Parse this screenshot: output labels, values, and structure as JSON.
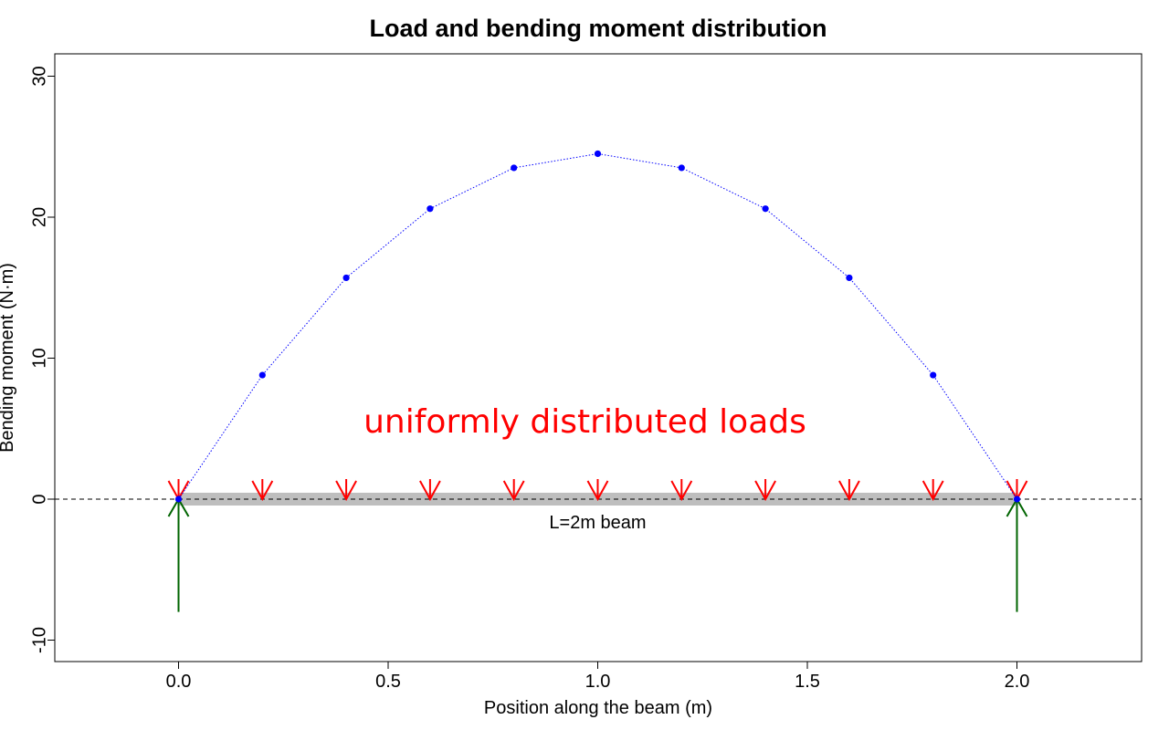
{
  "chart_data": {
    "type": "line",
    "title": "Load and bending moment distribution",
    "xlabel": "Position along the beam (m)",
    "ylabel": "Bending moment (N·m)",
    "xlim": [
      -0.3,
      2.3
    ],
    "ylim": [
      -11.5,
      31.5
    ],
    "x_ticks": [
      0.0,
      0.5,
      1.0,
      1.5,
      2.0
    ],
    "x_tick_labels": [
      "0.0",
      "0.5",
      "1.0",
      "1.5",
      "2.0"
    ],
    "y_ticks": [
      -10,
      0,
      10,
      20,
      30
    ],
    "y_tick_labels": [
      "-10",
      "0",
      "10",
      "20",
      "30"
    ],
    "grid": false,
    "series": [
      {
        "style": "dotted line with points",
        "color": "#0000ff",
        "x": [
          0.0,
          0.2,
          0.4,
          0.6,
          0.8,
          1.0,
          1.2,
          1.4,
          1.6,
          1.8,
          2.0
        ],
        "y": [
          0.0,
          8.8,
          15.7,
          20.6,
          23.5,
          24.5,
          23.5,
          20.6,
          15.7,
          8.8,
          0.0
        ]
      }
    ],
    "beam": {
      "x_start": 0.0,
      "x_end": 2.0,
      "y": 0,
      "color": "#bebebe",
      "label": "L=2m beam"
    },
    "distributed_loads": {
      "x": [
        0.0,
        0.2,
        0.4,
        0.6,
        0.8,
        1.0,
        1.2,
        1.4,
        1.6,
        1.8,
        2.0
      ],
      "color": "#ff0000",
      "label": "uniformly distributed loads"
    },
    "supports": {
      "x": [
        0.0,
        2.0
      ],
      "from_y": -8,
      "to_y": 0,
      "color": "#006400"
    },
    "reference_line": {
      "y": 0,
      "style": "dashed",
      "color": "#000000"
    }
  }
}
